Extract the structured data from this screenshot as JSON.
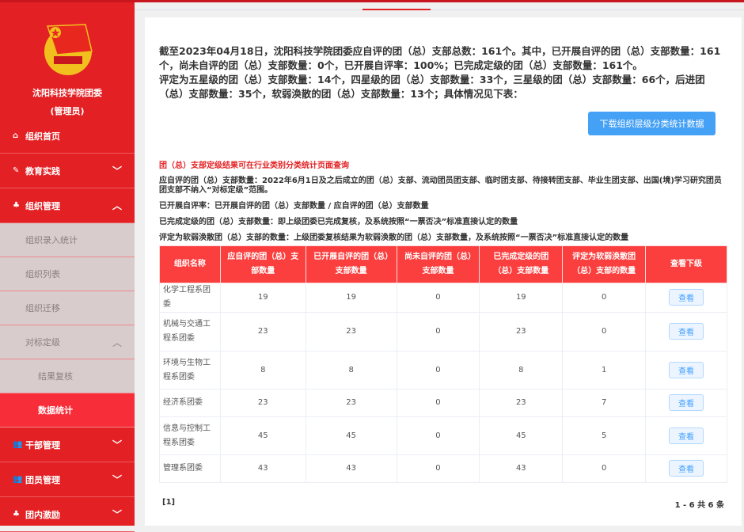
{
  "sidebar": {
    "org_name": "沈阳科技学院团委",
    "role": "(管理员)",
    "items": [
      {
        "label": "组织首页",
        "icon": "home-icon"
      },
      {
        "label": "教育实践",
        "icon": "edit-icon"
      },
      {
        "label": "组织管理",
        "icon": "sitemap-icon"
      }
    ],
    "subitems": [
      "组织录入统计",
      "组织列表",
      "组织迁移",
      "对标定级"
    ],
    "subsub": [
      "结果复核",
      "数据统计"
    ],
    "bottom": [
      {
        "label": "干部管理",
        "icon": "users-icon"
      },
      {
        "label": "团员管理",
        "icon": "users-icon"
      },
      {
        "label": "团内激励",
        "icon": "sitemap-icon"
      }
    ],
    "accent": "#e32124"
  },
  "summary": {
    "line1": "截至2023年04月18日，沈阳科技学院团委应自评的团（总）支部总数：161个。其中，已开展自评的团（总）支部数量：161个，尚未自评的团（总）支部数量：0个，已开展自评率：100%；已完成定级的团（总）支部数量：161个。",
    "line2": "评定为五星级的团（总）支部数量：14个，四星级的团（总）支部数量：33个，三星级的团（总）支部数量：66个，后进团（总）支部数量：35个，软弱涣散的团（总）支部数量：13个；具体情况见下表："
  },
  "download_label": "下载组织层级分类统计数据",
  "notes": {
    "red": "团（总）支部定级结果可在行业类别分类统计页面查询",
    "n1": "应自评的团（总）支部数量：2022年6月1日及之后成立的团（总）支部、流动团员团支部、临时团支部、待接转团支部、毕业生团支部、出国(境)学习研究团员团支部不纳入“对标定级”范围。",
    "n2": "已开展自评率：已开展自评的团（总）支部数量 / 应自评的团（总）支部数量",
    "n3": "已完成定级的团（总）支部数量：即上级团委已完成复核，及系统按照“一票否决”标准直接认定的数量",
    "n4": "评定为软弱涣散团（总）支部的数量：上级团委复核结果为软弱涣散的团（总）支部数量，及系统按照“一票否决”标准直接认定的数量"
  },
  "table": {
    "headers": [
      "组织名称",
      "应自评的团（总）支部数量",
      "已开展自评的团（总）支部数量",
      "尚未自评的团（总）支部数量",
      "已完成定级的团（总）支部数量",
      "评定为软弱涣散团（总）支部的数量",
      "查看下级"
    ],
    "rows": [
      [
        "化学工程系团委",
        "19",
        "19",
        "0",
        "19",
        "0"
      ],
      [
        "机械与交通工程系团委",
        "23",
        "23",
        "0",
        "23",
        "0"
      ],
      [
        "环境与生物工程系团委",
        "8",
        "8",
        "0",
        "8",
        "1"
      ],
      [
        "经济系团委",
        "23",
        "23",
        "0",
        "23",
        "7"
      ],
      [
        "信息与控制工程系团委",
        "45",
        "45",
        "0",
        "45",
        "5"
      ],
      [
        "管理系团委",
        "43",
        "43",
        "0",
        "43",
        "0"
      ]
    ],
    "view_label": "查看"
  },
  "pager": "[1]",
  "count": "1 - 6  共 6 条"
}
